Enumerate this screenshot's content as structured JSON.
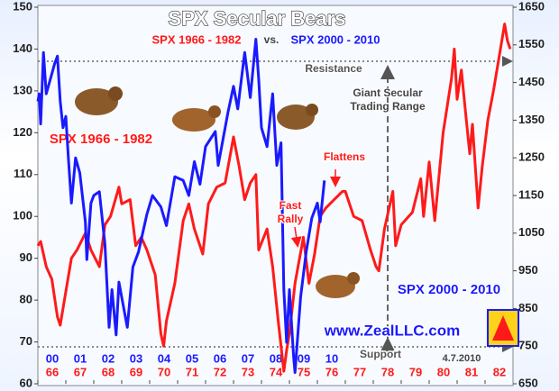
{
  "chart_data": {
    "type": "line",
    "title": "SPX Secular Bears",
    "xlim": [
      1966,
      1983
    ],
    "x2lim": [
      2000,
      2017
    ],
    "xticks": [
      {
        "value": 1966,
        "label": "66"
      },
      {
        "value": 1967,
        "label": "67"
      },
      {
        "value": 1968,
        "label": "68"
      },
      {
        "value": 1969,
        "label": "69"
      },
      {
        "value": 1970,
        "label": "70"
      },
      {
        "value": 1971,
        "label": "71"
      },
      {
        "value": 1972,
        "label": "72"
      },
      {
        "value": 1973,
        "label": "73"
      },
      {
        "value": 1974,
        "label": "74"
      },
      {
        "value": 1975,
        "label": "75"
      },
      {
        "value": 1976,
        "label": "76"
      },
      {
        "value": 1977,
        "label": "77"
      },
      {
        "value": 1978,
        "label": "78"
      },
      {
        "value": 1979,
        "label": "79"
      },
      {
        "value": 1980,
        "label": "80"
      },
      {
        "value": 1981,
        "label": "81"
      },
      {
        "value": 1982,
        "label": "82"
      }
    ],
    "x2ticks": [
      {
        "value": 2000,
        "label": "00"
      },
      {
        "value": 2001,
        "label": "01"
      },
      {
        "value": 2002,
        "label": "02"
      },
      {
        "value": 2003,
        "label": "03"
      },
      {
        "value": 2004,
        "label": "04"
      },
      {
        "value": 2005,
        "label": "05"
      },
      {
        "value": 2006,
        "label": "06"
      },
      {
        "value": 2007,
        "label": "07"
      },
      {
        "value": 2008,
        "label": "08"
      },
      {
        "value": 2009,
        "label": "09"
      },
      {
        "value": 2010,
        "label": "10"
      }
    ],
    "ylim": [
      60,
      150
    ],
    "yticks": [
      60,
      70,
      80,
      90,
      100,
      110,
      120,
      130,
      140,
      150
    ],
    "y2lim": [
      650,
      1650
    ],
    "y2ticks": [
      650,
      750,
      850,
      950,
      1050,
      1150,
      1250,
      1350,
      1450,
      1550,
      1650
    ],
    "series": [
      {
        "name": "SPX 1966 - 1982",
        "color": "#ff1a1a",
        "x": [
          1966.0,
          1966.1,
          1966.3,
          1966.5,
          1966.7,
          1966.8,
          1967.0,
          1967.2,
          1967.4,
          1967.7,
          1967.9,
          1968.2,
          1968.4,
          1968.6,
          1968.9,
          1969.0,
          1969.3,
          1969.5,
          1969.7,
          1969.9,
          1970.2,
          1970.4,
          1970.5,
          1970.6,
          1970.9,
          1971.2,
          1971.4,
          1971.6,
          1971.9,
          1972.1,
          1972.4,
          1972.7,
          1973.0,
          1973.2,
          1973.4,
          1973.6,
          1973.8,
          1973.9,
          1974.2,
          1974.4,
          1974.6,
          1974.8,
          1974.9,
          1975.0,
          1975.2,
          1975.5,
          1975.7,
          1975.9,
          1976.1,
          1976.3,
          1976.6,
          1976.9,
          1977.0,
          1977.3,
          1977.6,
          1977.9,
          1978.1,
          1978.2,
          1978.4,
          1978.7,
          1978.8,
          1979.0,
          1979.4,
          1979.7,
          1979.8,
          1980.0,
          1980.2,
          1980.5,
          1980.8,
          1980.9,
          1981.0,
          1981.15,
          1981.3,
          1981.45,
          1981.55,
          1981.75,
          1981.9,
          1982.1,
          1982.3,
          1982.5,
          1982.7,
          1982.8,
          1982.9
        ],
        "values": [
          93,
          94,
          88,
          85,
          76,
          74,
          82,
          90,
          92,
          96,
          92,
          88,
          98,
          100,
          107,
          103,
          104,
          93,
          95,
          92,
          86,
          72,
          69,
          75,
          84,
          99,
          103,
          97,
          91,
          103,
          107,
          108,
          119,
          112,
          104,
          108,
          110,
          92,
          97,
          88,
          75,
          63,
          68,
          72,
          84,
          95,
          84,
          91,
          100,
          102,
          104,
          106,
          106,
          100,
          99,
          92,
          88,
          87,
          97,
          106,
          93,
          98,
          101,
          109,
          100,
          113,
          99,
          120,
          133,
          140,
          128,
          135,
          125,
          115,
          122,
          102,
          112,
          123,
          130,
          138,
          146,
          142,
          140
        ]
      },
      {
        "name": "SPX 2000 - 2010",
        "color": "#1a1aff",
        "axis": "y2",
        "xaxis": "x2",
        "x": [
          2000.0,
          2000.05,
          2000.1,
          2000.2,
          2000.3,
          2000.45,
          2000.6,
          2000.7,
          2000.8,
          2000.9,
          2001.0,
          2001.1,
          2001.2,
          2001.35,
          2001.5,
          2001.7,
          2001.75,
          2001.9,
          2002.0,
          2002.2,
          2002.4,
          2002.55,
          2002.65,
          2002.8,
          2002.9,
          2003.0,
          2003.2,
          2003.4,
          2003.6,
          2003.9,
          2004.1,
          2004.4,
          2004.6,
          2004.9,
          2005.2,
          2005.4,
          2005.6,
          2005.8,
          2006.0,
          2006.35,
          2006.45,
          2006.8,
          2007.0,
          2007.15,
          2007.4,
          2007.6,
          2007.8,
          2007.9,
          2008.0,
          2008.2,
          2008.4,
          2008.55,
          2008.7,
          2008.8,
          2008.9,
          2009.0,
          2009.15,
          2009.2,
          2009.4,
          2009.6,
          2009.8,
          2010.0,
          2010.1,
          2010.25
        ],
        "values": [
          1400,
          1420,
          1340,
          1530,
          1420,
          1460,
          1500,
          1520,
          1400,
          1330,
          1360,
          1240,
          1130,
          1250,
          1210,
          1080,
          980,
          1130,
          1150,
          1160,
          1020,
          800,
          900,
          780,
          920,
          880,
          800,
          960,
          1000,
          1100,
          1150,
          1120,
          1070,
          1200,
          1190,
          1150,
          1240,
          1180,
          1280,
          1320,
          1230,
          1370,
          1440,
          1380,
          1530,
          1410,
          1565,
          1460,
          1330,
          1280,
          1420,
          1230,
          1290,
          900,
          760,
          900,
          720,
          680,
          880,
          1000,
          1090,
          1130,
          1080,
          1190
        ]
      }
    ],
    "annotations": {
      "versus": "vs.",
      "resistance": "Resistance",
      "trading_range": "Giant Secular Trading Range",
      "flattens": "Flattens",
      "fast_rally": "Fast Rally",
      "support": "Support",
      "website": "www.ZealLLC.com",
      "date": "4.7.2010"
    }
  }
}
